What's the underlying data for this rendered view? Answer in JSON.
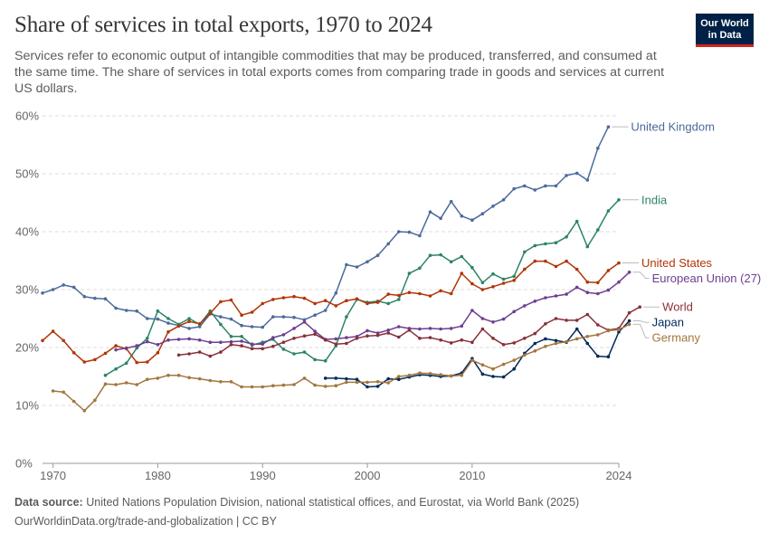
{
  "header": {
    "title": "Share of services in total exports, 1970 to 2024",
    "subtitle": "Services refer to economic output of intangible commodities that may be produced, transferred, and consumed at the same time. The share of services in total exports comes from comparing trade in goods and services at current US dollars."
  },
  "logo": {
    "line1": "Our World",
    "line2": "in Data",
    "bg": "#002147",
    "accent": "#ce261e"
  },
  "footer": {
    "source_label": "Data source:",
    "source_text": "United Nations Population Division, national statistical offices, and Eurostat, via World Bank (2025)",
    "site": "OurWorldinData.org/trade-and-globalization | CC BY"
  },
  "chart_data": {
    "type": "line",
    "xlim": [
      1969,
      2024
    ],
    "ylim": [
      0,
      60
    ],
    "x_ticks": [
      1970,
      1980,
      1990,
      2000,
      2010,
      2024
    ],
    "y_ticks": [
      0,
      10,
      20,
      30,
      40,
      50,
      60
    ],
    "y_tick_labels": [
      "0%",
      "10%",
      "20%",
      "30%",
      "40%",
      "50%",
      "60%"
    ],
    "grid": "horizontal-dashed",
    "legend": "inline-right",
    "series": [
      {
        "name": "United Kingdom",
        "color": "#4c6a9c",
        "start": 1969,
        "values": [
          29.4,
          30.0,
          30.8,
          30.4,
          28.8,
          28.5,
          28.4,
          26.8,
          26.4,
          26.3,
          25.0,
          24.9,
          24.2,
          23.8,
          23.3,
          23.6,
          25.8,
          25.3,
          24.9,
          23.8,
          23.6,
          23.5,
          25.3,
          25.3,
          25.2,
          24.8,
          25.6,
          26.4,
          29.4,
          34.3,
          33.9,
          34.8,
          35.9,
          37.9,
          40.0,
          39.9,
          39.3,
          43.4,
          42.3,
          45.2,
          42.7,
          42.0,
          43.1,
          44.4,
          45.5,
          47.4,
          47.9,
          47.2,
          47.9,
          47.9,
          49.7,
          50.1,
          48.9,
          54.4,
          58.1
        ]
      },
      {
        "name": "India",
        "color": "#2c8465",
        "start": 1975,
        "values": [
          15.2,
          16.3,
          17.3,
          19.9,
          21.6,
          26.3,
          25.0,
          24.0,
          25.0,
          24.0,
          26.3,
          24.0,
          21.9,
          21.9,
          20.4,
          20.9,
          21.4,
          19.7,
          18.9,
          19.2,
          17.9,
          17.7,
          20.3,
          25.3,
          28.3,
          27.8,
          28.0,
          27.6,
          28.3,
          32.8,
          33.7,
          35.9,
          36.0,
          34.8,
          35.7,
          33.8,
          31.2,
          32.7,
          31.8,
          32.3,
          36.5,
          37.6,
          37.9,
          38.1,
          39.1,
          41.8,
          37.4,
          40.3,
          43.6,
          45.5
        ]
      },
      {
        "name": "United States",
        "color": "#b13507",
        "start": 1969,
        "values": [
          21.2,
          22.8,
          21.2,
          19.1,
          17.5,
          17.9,
          19.0,
          20.3,
          19.8,
          17.4,
          17.5,
          19.1,
          22.7,
          23.7,
          24.5,
          24.1,
          25.9,
          27.9,
          28.2,
          25.6,
          26.1,
          27.6,
          28.3,
          28.6,
          28.8,
          28.5,
          27.6,
          28.1,
          27.2,
          28.1,
          28.4,
          27.6,
          27.8,
          29.2,
          29.0,
          29.5,
          29.3,
          28.9,
          29.8,
          29.3,
          32.8,
          31.0,
          30.0,
          30.5,
          31.1,
          31.6,
          33.5,
          34.9,
          34.9,
          34.0,
          34.9,
          33.5,
          31.3,
          31.2,
          33.3,
          34.6
        ]
      },
      {
        "name": "European Union (27)",
        "color": "#6d3e91",
        "start": 1976,
        "values": [
          19.6,
          19.9,
          20.3,
          21.0,
          20.5,
          21.3,
          21.4,
          21.5,
          21.3,
          20.9,
          20.9,
          21.0,
          21.1,
          20.6,
          20.6,
          21.7,
          22.2,
          23.3,
          24.4,
          22.8,
          21.4,
          21.5,
          21.7,
          21.9,
          22.9,
          22.5,
          23.0,
          23.6,
          23.3,
          23.2,
          23.3,
          23.2,
          23.3,
          23.7,
          26.4,
          25.0,
          24.4,
          24.9,
          26.2,
          27.2,
          28.0,
          28.6,
          28.9,
          29.2,
          30.4,
          29.5,
          29.3,
          29.9,
          31.3,
          33.0
        ]
      },
      {
        "name": "World",
        "color": "#883039",
        "start": 1982,
        "values": [
          18.7,
          18.9,
          19.2,
          18.5,
          19.2,
          20.5,
          20.3,
          19.8,
          19.8,
          20.2,
          20.9,
          21.6,
          22.0,
          22.3,
          21.3,
          20.6,
          20.7,
          21.6,
          22.0,
          22.1,
          22.5,
          21.8,
          23.0,
          21.6,
          21.7,
          21.3,
          20.8,
          21.3,
          20.9,
          23.2,
          21.6,
          20.5,
          20.8,
          21.6,
          22.4,
          24.1,
          25.0,
          24.7,
          24.7,
          25.7,
          23.9,
          23.0,
          23.3,
          26.0,
          27.0
        ]
      },
      {
        "name": "Japan",
        "color": "#00295b",
        "start": 1996,
        "values": [
          14.7,
          14.7,
          14.6,
          14.5,
          13.2,
          13.3,
          14.6,
          14.5,
          14.9,
          15.3,
          15.2,
          15.0,
          15.1,
          15.6,
          18.1,
          15.4,
          15.0,
          14.9,
          16.3,
          19.0,
          20.7,
          21.5,
          21.2,
          20.9,
          23.2,
          20.7,
          18.5,
          18.4,
          22.7,
          24.6
        ]
      },
      {
        "name": "Germany",
        "color": "#a2763d",
        "start": 1970,
        "values": [
          12.5,
          12.3,
          10.7,
          9.1,
          10.9,
          13.7,
          13.6,
          13.9,
          13.6,
          14.5,
          14.7,
          15.2,
          15.2,
          14.8,
          14.6,
          14.3,
          14.1,
          14.1,
          13.2,
          13.2,
          13.2,
          13.4,
          13.5,
          13.6,
          14.7,
          13.5,
          13.3,
          13.4,
          14.0,
          14.0,
          14.0,
          14.1,
          13.9,
          15.0,
          15.2,
          15.6,
          15.5,
          15.3,
          15.1,
          15.2,
          17.8,
          17.0,
          16.3,
          17.1,
          17.8,
          18.7,
          19.4,
          20.2,
          20.7,
          21.0,
          21.5,
          21.9,
          22.2,
          22.9,
          23.1,
          24.0
        ]
      }
    ]
  }
}
